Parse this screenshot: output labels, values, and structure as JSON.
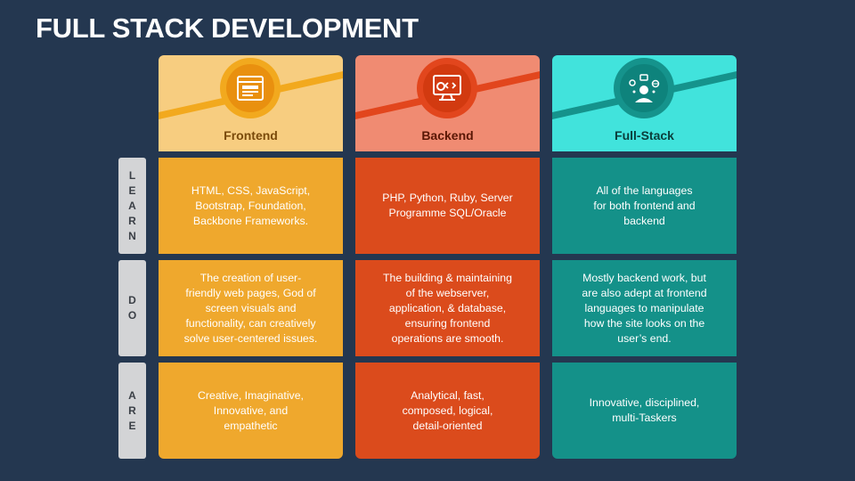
{
  "title": "FULL STACK DEVELOPMENT",
  "rows": [
    {
      "label": "LEARN",
      "letters": [
        "L",
        "E",
        "A",
        "R",
        "N"
      ]
    },
    {
      "label": "DO",
      "letters": [
        "D",
        "O"
      ]
    },
    {
      "label": "ARE",
      "letters": [
        "A",
        "R",
        "E"
      ]
    }
  ],
  "columns": [
    {
      "name": "Frontend",
      "icon": "web-page-icon",
      "colors": {
        "header": "#f7cd80",
        "stripe": "#f2a91e",
        "circle": "#f2a91e",
        "inner": "#e9900f",
        "cell": "#efa82d",
        "label": "#7a4a0a"
      },
      "learn": "HTML, CSS, JavaScript, Bootstrap, Foundation, Backbone Frameworks.",
      "do": "The creation of user-friendly web pages, God of screen visuals and functionality, can creatively solve user-centered issues.",
      "are": "Creative, Imaginative, Innovative, and empathetic"
    },
    {
      "name": "Backend",
      "icon": "server-code-icon",
      "colors": {
        "header": "#f08b72",
        "stripe": "#e2461d",
        "circle": "#e2461d",
        "inner": "#d23a10",
        "cell": "#db4b1c",
        "label": "#5a1705"
      },
      "learn": "PHP, Python, Ruby, Server Programme SQL/Oracle",
      "do": "The building & maintaining of the webserver, application, & database, ensuring frontend operations are smooth.",
      "are": "Analytical, fast, composed, logical, detail-oriented"
    },
    {
      "name": "Full-Stack",
      "icon": "developer-icon",
      "colors": {
        "header": "#41e3dc",
        "stripe": "#15938c",
        "circle": "#15938c",
        "inner": "#0e837c",
        "cell": "#149189",
        "label": "#0b3e3b"
      },
      "learn": "All of the languages for both frontend and backend",
      "do": "Mostly backend work, but are also adept at frontend languages to manipulate how the site looks on the user’s end.",
      "are": "Innovative, disciplined, multi-Taskers"
    }
  ]
}
